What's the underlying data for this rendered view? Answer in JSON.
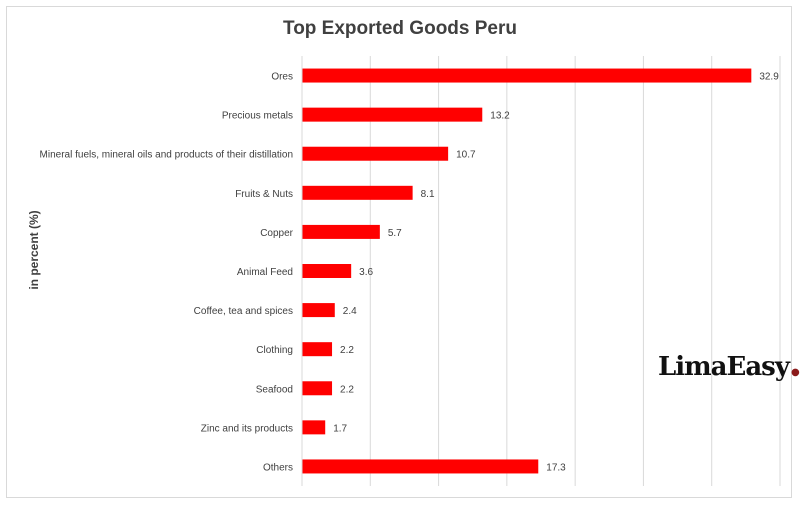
{
  "chart_data": {
    "type": "bar",
    "orientation": "horizontal",
    "title": "Top Exported Goods Peru",
    "ylabel": "in percent (%)",
    "xlim": [
      0,
      35
    ],
    "grid": true,
    "bar_color": "#ff0000",
    "categories": [
      "Ores",
      "Precious metals",
      "Mineral fuels, mineral oils and products of their distillation",
      "Fruits & Nuts",
      "Copper",
      "Animal Feed",
      "Coffee, tea and spices",
      "Clothing",
      "Seafood",
      "Zinc and its products",
      "Others"
    ],
    "values": [
      32.9,
      13.2,
      10.7,
      8.1,
      5.7,
      3.6,
      2.4,
      2.2,
      2.2,
      1.7,
      17.3
    ],
    "data_labels": [
      "32.9",
      "13.2",
      "10.7",
      "8.1",
      "5.7",
      "3.6",
      "2.4",
      "2.2",
      "2.2",
      "1.7",
      "17.3"
    ]
  },
  "logo": {
    "text": "LimaEasy"
  }
}
